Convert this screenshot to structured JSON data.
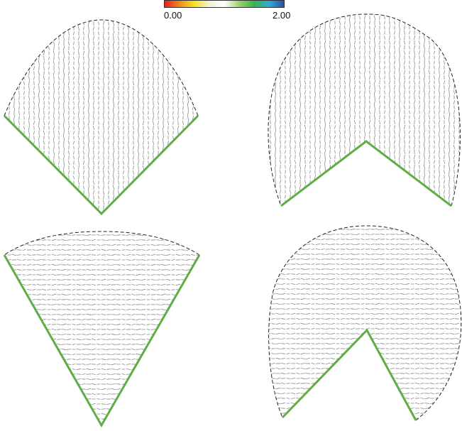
{
  "colorbar": {
    "min_label": "0.00",
    "max_label": "2.00",
    "stops": [
      "#e8201c",
      "#f08a1e",
      "#f7e21f",
      "#f2f2d8",
      "#ffffff",
      "#9cd36b",
      "#3bb34a",
      "#31a9d6",
      "#2b4fa3"
    ]
  },
  "colors": {
    "field_glyph": "#8a8a8a",
    "boundary_edge": "#5fae45",
    "outline": "#222222"
  },
  "panels": [
    {
      "name": "fan-90-degrees",
      "glyph_orientation": "vertical"
    },
    {
      "name": "fan-270-degrees",
      "glyph_orientation": "vertical"
    },
    {
      "name": "wedge-45-degrees",
      "glyph_orientation": "horizontal"
    },
    {
      "name": "disc-with-notch",
      "glyph_orientation": "horizontal"
    }
  ]
}
